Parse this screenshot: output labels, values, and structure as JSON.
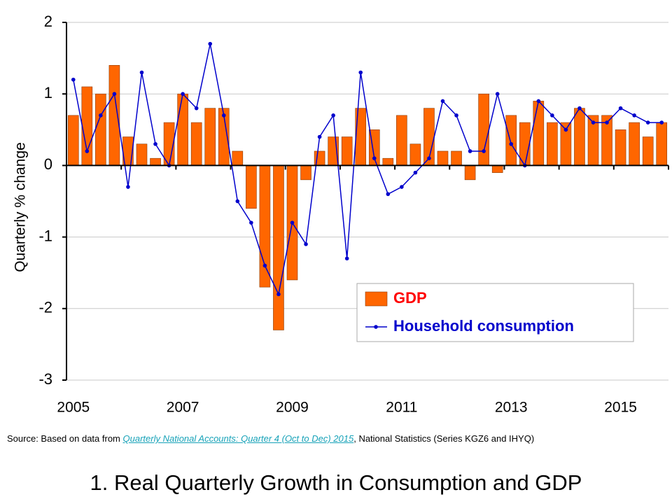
{
  "chart_data": {
    "type": "bar",
    "title": "1. Real Quarterly Growth in Consumption and GDP",
    "y_label": "Quarterly % change",
    "source": {
      "prefix": "Source: Based on data from",
      "link": "Quarterly National Accounts: Quarter 4 (Oct to Dec) 2015",
      "suffix": ", National Statistics (Series KGZ6 and IHYQ)"
    },
    "categories": [
      "2005",
      null,
      null,
      null,
      null,
      null,
      null,
      null,
      "2007",
      null,
      null,
      null,
      null,
      null,
      null,
      null,
      "2009",
      null,
      null,
      null,
      null,
      null,
      null,
      null,
      "2011",
      null,
      null,
      null,
      null,
      null,
      null,
      null,
      "2013",
      null,
      null,
      null,
      null,
      null,
      null,
      null,
      "2015",
      null,
      null,
      null
    ],
    "series": [
      {
        "name": "GDP",
        "type": "bar",
        "color": "#ff6600",
        "label_color": "#ff0000",
        "values": [
          0.7,
          1.1,
          1.0,
          1.4,
          0.4,
          0.3,
          0.1,
          0.6,
          1.0,
          0.6,
          0.8,
          0.8,
          0.2,
          -0.6,
          -1.7,
          -2.3,
          -1.6,
          -0.2,
          0.2,
          0.4,
          0.4,
          0.8,
          0.5,
          0.1,
          0.7,
          0.3,
          0.8,
          0.2,
          0.2,
          -0.2,
          1.0,
          -0.1,
          0.7,
          0.6,
          0.9,
          0.6,
          0.6,
          0.8,
          0.7,
          0.7,
          0.5,
          0.6,
          0.4,
          0.6
        ]
      },
      {
        "name": "Household consumption",
        "type": "line",
        "color": "#0000cc",
        "label_color": "#0000cc",
        "values": [
          1.2,
          0.2,
          0.7,
          1.0,
          -0.3,
          1.3,
          0.3,
          0.0,
          1.0,
          0.8,
          1.7,
          0.7,
          -0.5,
          -0.8,
          -1.4,
          -1.8,
          -0.8,
          -1.1,
          0.4,
          0.7,
          -1.3,
          1.3,
          0.1,
          -0.4,
          -0.3,
          -0.1,
          0.1,
          0.9,
          0.7,
          0.2,
          0.2,
          1.0,
          0.3,
          0.0,
          0.9,
          0.7,
          0.5,
          0.8,
          0.6,
          0.6,
          0.8,
          0.7,
          0.6,
          0.6
        ]
      }
    ],
    "ylim": [
      -3,
      2
    ],
    "yticks": [
      -3,
      -2,
      -1,
      0,
      1,
      2
    ],
    "grid": true
  }
}
